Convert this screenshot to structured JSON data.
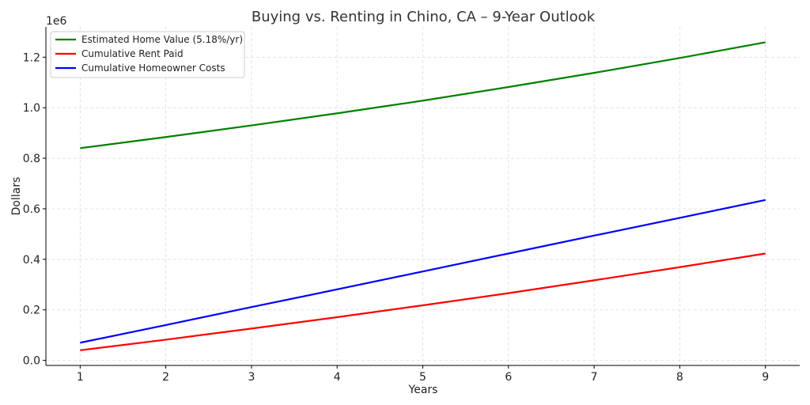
{
  "chart_data": {
    "type": "line",
    "title": "Buying vs. Renting in Chino, CA – 9-Year Outlook",
    "xlabel": "Years",
    "ylabel": "Dollars",
    "y_offset_label": "1e6",
    "x": [
      1,
      2,
      3,
      4,
      5,
      6,
      7,
      8,
      9
    ],
    "xlim": [
      0.6,
      9.4
    ],
    "ylim": [
      -0.02,
      1.32
    ],
    "x_ticks": [
      1,
      2,
      3,
      4,
      5,
      6,
      7,
      8,
      9
    ],
    "y_ticks": [
      0.0,
      0.2,
      0.4,
      0.6,
      0.8,
      1.0,
      1.2
    ],
    "y_tick_labels": [
      "0.0",
      "0.2",
      "0.4",
      "0.6",
      "0.8",
      "1.0",
      "1.2"
    ],
    "grid": true,
    "legend_position": "top-left",
    "series": [
      {
        "name": "Estimated Home Value (5.18%/yr)",
        "color": "#008000",
        "values": [
          0.84,
          0.884,
          0.93,
          0.978,
          1.028,
          1.082,
          1.138,
          1.197,
          1.259
        ]
      },
      {
        "name": "Cumulative Rent Paid",
        "color": "#ff0000",
        "values": [
          0.04,
          0.082,
          0.126,
          0.171,
          0.218,
          0.266,
          0.317,
          0.369,
          0.423
        ]
      },
      {
        "name": "Cumulative Homeowner Costs",
        "color": "#0000ff",
        "values": [
          0.07,
          0.14,
          0.211,
          0.281,
          0.352,
          0.423,
          0.494,
          0.564,
          0.635
        ]
      }
    ]
  }
}
